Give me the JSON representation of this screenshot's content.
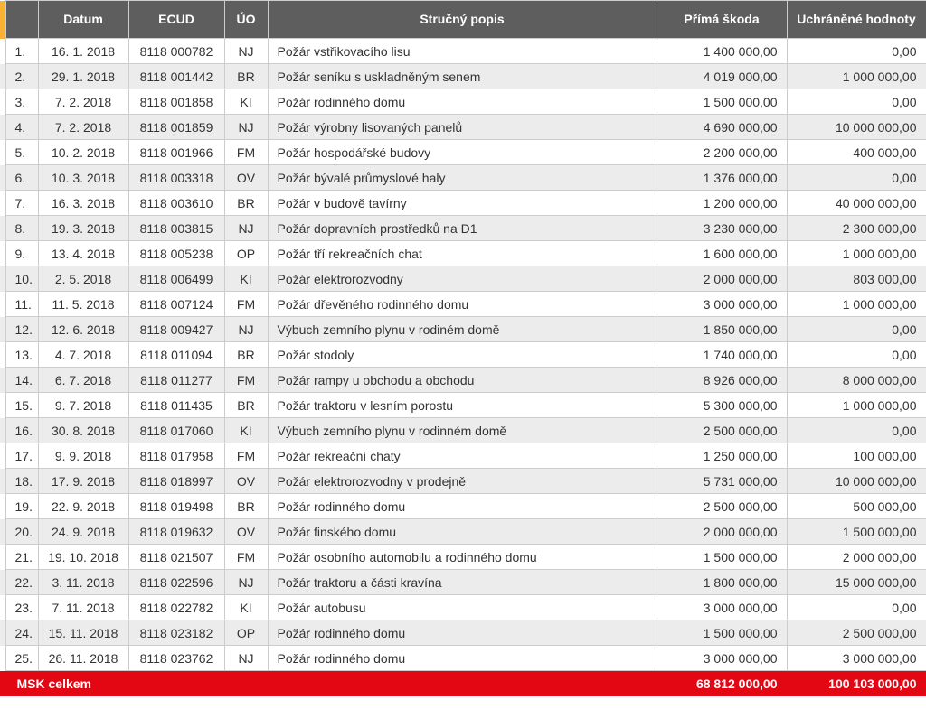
{
  "table": {
    "columns": {
      "idx": "",
      "date": "Datum",
      "ecud": "ECUD",
      "uo": "ÚO",
      "desc": "Stručný popis",
      "damage": "Přímá škoda",
      "saved": "Uchráněné hodnoty"
    },
    "col_widths": {
      "accent": 6,
      "idx": 36,
      "date": 100,
      "ecud": 106,
      "uo": 48,
      "desc": 430,
      "damage": 144,
      "saved": 154
    },
    "rows": [
      {
        "idx": "1.",
        "date": "16. 1. 2018",
        "ecud": "8118 000782",
        "uo": "NJ",
        "desc": "Požár vstřikovacího lisu",
        "damage": "1 400 000,00",
        "saved": "0,00"
      },
      {
        "idx": "2.",
        "date": "29. 1. 2018",
        "ecud": "8118 001442",
        "uo": "BR",
        "desc": "Požár seníku s uskladněným senem",
        "damage": "4 019 000,00",
        "saved": "1 000 000,00"
      },
      {
        "idx": "3.",
        "date": "7. 2. 2018",
        "ecud": "8118 001858",
        "uo": "KI",
        "desc": "Požár rodinného domu",
        "damage": "1 500 000,00",
        "saved": "0,00"
      },
      {
        "idx": "4.",
        "date": "7. 2. 2018",
        "ecud": "8118 001859",
        "uo": "NJ",
        "desc": "Požár výrobny lisovaných panelů",
        "damage": "4 690 000,00",
        "saved": "10 000 000,00"
      },
      {
        "idx": "5.",
        "date": "10. 2. 2018",
        "ecud": "8118 001966",
        "uo": "FM",
        "desc": "Požár hospodářské budovy",
        "damage": "2 200 000,00",
        "saved": "400 000,00"
      },
      {
        "idx": "6.",
        "date": "10. 3. 2018",
        "ecud": "8118 003318",
        "uo": "OV",
        "desc": "Požár bývalé průmyslové haly",
        "damage": "1 376 000,00",
        "saved": "0,00"
      },
      {
        "idx": "7.",
        "date": "16. 3. 2018",
        "ecud": "8118 003610",
        "uo": "BR",
        "desc": "Požár v budově tavírny",
        "damage": "1 200 000,00",
        "saved": "40 000 000,00"
      },
      {
        "idx": "8.",
        "date": "19. 3. 2018",
        "ecud": "8118 003815",
        "uo": "NJ",
        "desc": "Požár dopravních prostředků na D1",
        "damage": "3 230 000,00",
        "saved": "2 300 000,00"
      },
      {
        "idx": "9.",
        "date": "13. 4. 2018",
        "ecud": "8118 005238",
        "uo": "OP",
        "desc": "Požár tří rekreačních chat",
        "damage": "1 600 000,00",
        "saved": "1 000 000,00"
      },
      {
        "idx": "10.",
        "date": "2. 5. 2018",
        "ecud": "8118 006499",
        "uo": "KI",
        "desc": "Požár elektrorozvodny",
        "damage": "2 000 000,00",
        "saved": "803 000,00"
      },
      {
        "idx": "11.",
        "date": "11. 5. 2018",
        "ecud": "8118 007124",
        "uo": "FM",
        "desc": "Požár dřevěného rodinného domu",
        "damage": "3 000 000,00",
        "saved": "1 000 000,00"
      },
      {
        "idx": "12.",
        "date": "12. 6. 2018",
        "ecud": "8118 009427",
        "uo": "NJ",
        "desc": "Výbuch zemního plynu v rodiném domě",
        "damage": "1 850 000,00",
        "saved": "0,00"
      },
      {
        "idx": "13.",
        "date": "4. 7. 2018",
        "ecud": "8118 011094",
        "uo": "BR",
        "desc": "Požár stodoly",
        "damage": "1 740 000,00",
        "saved": "0,00"
      },
      {
        "idx": "14.",
        "date": "6. 7. 2018",
        "ecud": "8118 011277",
        "uo": "FM",
        "desc": "Požár rampy u obchodu a obchodu",
        "damage": "8 926 000,00",
        "saved": "8 000 000,00"
      },
      {
        "idx": "15.",
        "date": "9. 7. 2018",
        "ecud": "8118 011435",
        "uo": "BR",
        "desc": "Požár traktoru v lesním porostu",
        "damage": "5 300 000,00",
        "saved": "1 000 000,00"
      },
      {
        "idx": "16.",
        "date": "30. 8. 2018",
        "ecud": "8118 017060",
        "uo": "KI",
        "desc": "Výbuch zemního plynu v rodinném domě",
        "damage": "2 500 000,00",
        "saved": "0,00"
      },
      {
        "idx": "17.",
        "date": "9. 9. 2018",
        "ecud": "8118 017958",
        "uo": "FM",
        "desc": "Požár rekreační chaty",
        "damage": "1 250 000,00",
        "saved": "100 000,00"
      },
      {
        "idx": "18.",
        "date": "17. 9. 2018",
        "ecud": "8118 018997",
        "uo": "OV",
        "desc": "Požár elektrorozvodny v prodejně",
        "damage": "5 731 000,00",
        "saved": "10 000 000,00"
      },
      {
        "idx": "19.",
        "date": "22. 9. 2018",
        "ecud": "8118 019498",
        "uo": "BR",
        "desc": "Požár rodinného domu",
        "damage": "2 500 000,00",
        "saved": "500 000,00"
      },
      {
        "idx": "20.",
        "date": "24. 9. 2018",
        "ecud": "8118 019632",
        "uo": "OV",
        "desc": "Požár finského domu",
        "damage": "2 000 000,00",
        "saved": "1 500 000,00"
      },
      {
        "idx": "21.",
        "date": "19. 10. 2018",
        "ecud": "8118 021507",
        "uo": "FM",
        "desc": "Požár osobního automobilu a rodinného domu",
        "damage": "1 500 000,00",
        "saved": "2 000 000,00"
      },
      {
        "idx": "22.",
        "date": "3. 11. 2018",
        "ecud": "8118 022596",
        "uo": "NJ",
        "desc": "Požár traktoru a části kravína",
        "damage": "1 800 000,00",
        "saved": "15 000 000,00"
      },
      {
        "idx": "23.",
        "date": "7. 11. 2018",
        "ecud": "8118 022782",
        "uo": "KI",
        "desc": "Požár autobusu",
        "damage": "3 000 000,00",
        "saved": "0,00"
      },
      {
        "idx": "24.",
        "date": "15. 11. 2018",
        "ecud": "8118 023182",
        "uo": "OP",
        "desc": "Požár rodinného domu",
        "damage": "1 500 000,00",
        "saved": "2 500 000,00"
      },
      {
        "idx": "25.",
        "date": "26. 11. 2018",
        "ecud": "8118 023762",
        "uo": "NJ",
        "desc": "Požár rodinného domu",
        "damage": "3 000 000,00",
        "saved": "3 000 000,00"
      }
    ],
    "footer": {
      "label": "MSK celkem",
      "damage_total": "68 812 000,00",
      "saved_total": "100 103 000,00"
    },
    "colors": {
      "header_bg": "#5e5e5e",
      "header_text": "#ffffff",
      "row_odd_bg": "#ffffff",
      "row_even_bg": "#ececec",
      "border": "#cccccc",
      "footer_bg": "#e30613",
      "footer_text": "#ffffff",
      "accent_bar": "#f9b233",
      "text": "#333333"
    },
    "font_size": 14
  }
}
